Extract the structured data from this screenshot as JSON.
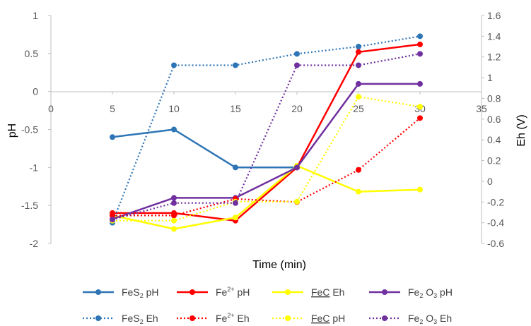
{
  "chart_data": {
    "type": "line",
    "title": "",
    "xlabel": "Time (min)",
    "ylabel_left": "pH",
    "ylabel_right": "Eh (V)",
    "xlim": [
      0,
      35
    ],
    "xticks": [
      0,
      5,
      10,
      15,
      20,
      25,
      30,
      35
    ],
    "ylim_left": [
      -2,
      1
    ],
    "yticks_left": [
      1,
      0.5,
      0,
      -0.5,
      -1,
      -1.5,
      -2
    ],
    "ylim_right": [
      -0.6,
      1.6
    ],
    "yticks_right": [
      1.6,
      1.4,
      1.2,
      1,
      0.8,
      0.6,
      0.4,
      0.2,
      0,
      -0.2,
      -0.4,
      -0.6
    ],
    "grid": false,
    "legend_position": "bottom",
    "series": [
      {
        "name": "FeS2 pH",
        "label_main": "FeS",
        "label_sub": "2",
        "label_tail": " pH",
        "sub_mode": "sub",
        "axis": "left",
        "style": "solid",
        "color": "#2E75B6",
        "x": [
          5,
          10,
          15,
          20
        ],
        "y": [
          -0.6,
          -0.5,
          -1.0,
          -1.0
        ]
      },
      {
        "name": "Fe2+ pH",
        "label_main": "Fe",
        "label_sub": "2+",
        "label_tail": " pH",
        "sub_mode": "sup",
        "axis": "left",
        "style": "solid",
        "color": "#FF0000",
        "x": [
          5,
          10,
          15,
          20,
          25,
          30
        ],
        "y": [
          -1.6,
          -1.6,
          -1.7,
          -1.0,
          0.52,
          0.62
        ]
      },
      {
        "name": "FeC Eh",
        "label_main": "FeC",
        "label_sub": "",
        "label_tail": " Eh",
        "sub_mode": "none",
        "underline": true,
        "axis": "right",
        "style": "solid",
        "color": "#FFFF00",
        "x": [
          5,
          10,
          15,
          20,
          25,
          30
        ],
        "y": [
          -0.33,
          -0.46,
          -0.35,
          0.15,
          -0.1,
          -0.08
        ]
      },
      {
        "name": "Fe2O3 pH",
        "label_main": "Fe",
        "label_sub": "2",
        "label_tail": " O",
        "label_sub2": "3",
        "label_tail2": " pH",
        "sub_mode": "sub",
        "axis": "left",
        "style": "solid",
        "color": "#7030A0",
        "x": [
          5,
          10,
          15,
          20,
          25,
          30
        ],
        "y": [
          -1.68,
          -1.4,
          -1.4,
          -1.0,
          0.1,
          0.1
        ]
      },
      {
        "name": "FeS2 Eh",
        "label_main": "FeS",
        "label_sub": "2",
        "label_tail": " Eh",
        "sub_mode": "sub",
        "axis": "right",
        "style": "dotted",
        "color": "#2E75B6",
        "x": [
          5,
          10,
          15,
          20,
          25,
          30
        ],
        "y": [
          -0.4,
          1.12,
          1.12,
          1.23,
          1.3,
          1.4
        ]
      },
      {
        "name": "Fe2+ Eh",
        "label_main": "Fe",
        "label_sub": "2+",
        "label_tail": " Eh",
        "sub_mode": "sup",
        "axis": "right",
        "style": "dotted",
        "color": "#FF0000",
        "x": [
          5,
          10,
          15,
          20,
          25,
          30
        ],
        "y": [
          -0.33,
          -0.33,
          -0.17,
          -0.2,
          0.11,
          0.61
        ]
      },
      {
        "name": "FeC pH",
        "label_main": "FeC",
        "label_sub": "",
        "label_tail": " pH",
        "sub_mode": "none",
        "underline": true,
        "axis": "left",
        "style": "dotted",
        "color": "#FFFF00",
        "x": [
          5,
          10,
          15,
          20,
          25,
          30
        ],
        "y": [
          -1.7,
          -1.7,
          -1.45,
          -1.45,
          -0.07,
          -0.2
        ]
      },
      {
        "name": "Fe2O3 Eh",
        "label_main": "Fe",
        "label_sub": "2",
        "label_tail": " O",
        "label_sub2": "3",
        "label_tail2": " Eh",
        "sub_mode": "sub",
        "axis": "right",
        "style": "dotted",
        "color": "#7030A0",
        "x": [
          5,
          10,
          15,
          20,
          25,
          30
        ],
        "y": [
          -0.37,
          -0.21,
          -0.21,
          1.12,
          1.12,
          1.23
        ]
      }
    ]
  }
}
